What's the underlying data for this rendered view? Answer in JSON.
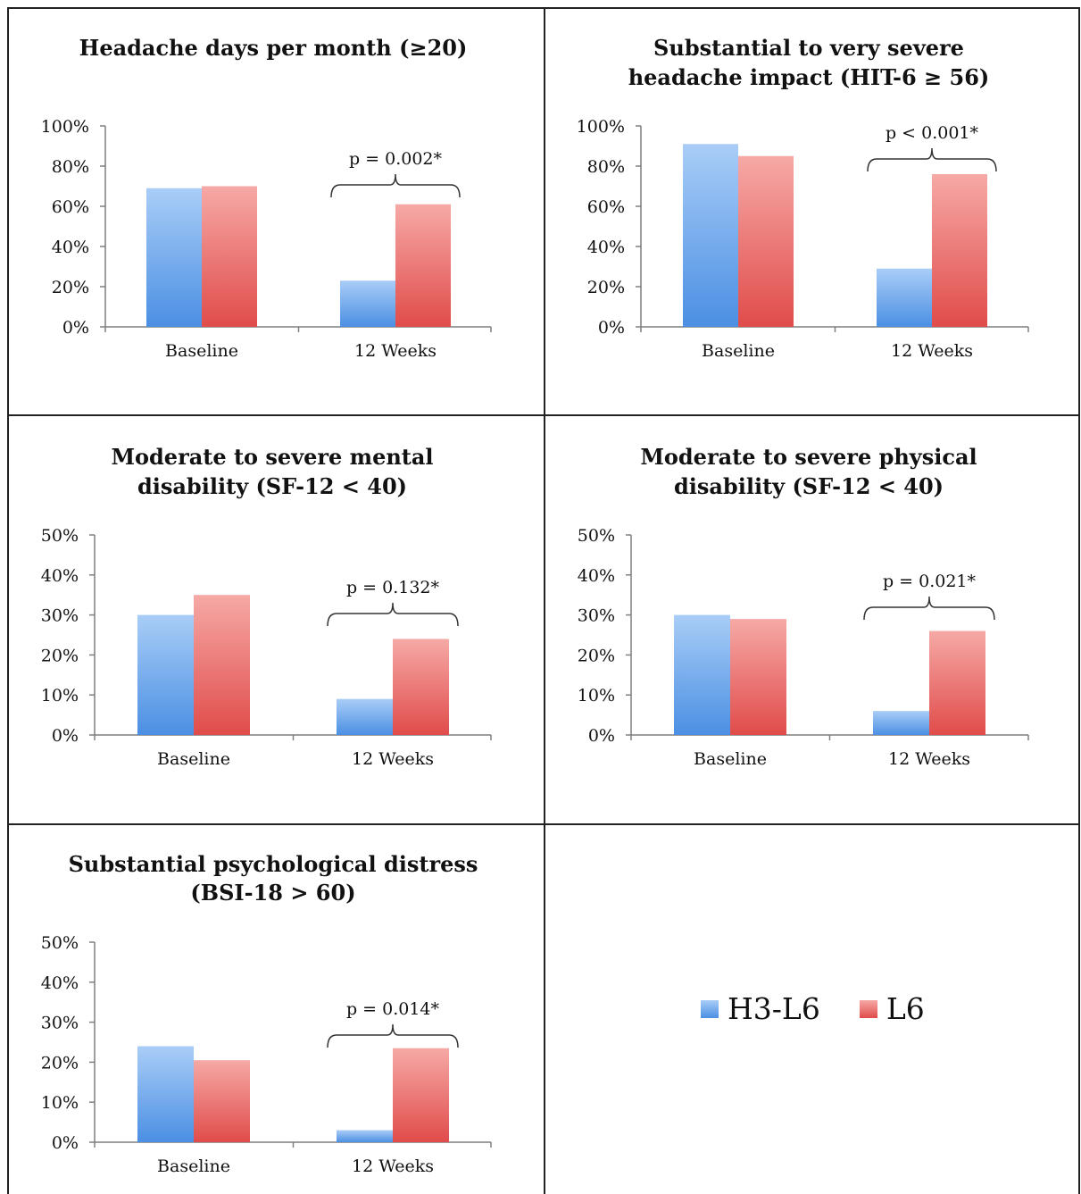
{
  "colors": {
    "h3l6_light": "#a9cdf7",
    "h3l6_dark": "#4b8fe3",
    "l6_light": "#f6a9a6",
    "l6_dark": "#e04c4a",
    "axis": "#7f7f7f",
    "text": "#111111"
  },
  "legend": {
    "items": [
      {
        "label": "H3-L6",
        "color": "#4b8fe3"
      },
      {
        "label": "L6",
        "color": "#e04c4a"
      }
    ]
  },
  "chart_data": [
    {
      "type": "bar",
      "title": [
        "Headache days per month (≥20)"
      ],
      "categories": [
        "Baseline",
        "12 Weeks"
      ],
      "series": [
        {
          "name": "H3-L6",
          "values": [
            69,
            23
          ]
        },
        {
          "name": "L6",
          "values": [
            70,
            61
          ]
        }
      ],
      "ylim": [
        0,
        100
      ],
      "yticks": [
        "0%",
        "20%",
        "40%",
        "60%",
        "80%",
        "100%"
      ],
      "annotation": "p = 0.002*"
    },
    {
      "type": "bar",
      "title": [
        "Substantial to very severe",
        "headache impact (HIT-6 ≥ 56)"
      ],
      "categories": [
        "Baseline",
        "12 Weeks"
      ],
      "series": [
        {
          "name": "H3-L6",
          "values": [
            91,
            29
          ]
        },
        {
          "name": "L6",
          "values": [
            85,
            76
          ]
        }
      ],
      "ylim": [
        0,
        100
      ],
      "yticks": [
        "0%",
        "20%",
        "40%",
        "60%",
        "80%",
        "100%"
      ],
      "annotation": "p < 0.001*"
    },
    {
      "type": "bar",
      "title": [
        "Moderate to severe mental",
        "disability (SF-12 < 40)"
      ],
      "categories": [
        "Baseline",
        "12 Weeks"
      ],
      "series": [
        {
          "name": "H3-L6",
          "values": [
            30,
            9
          ]
        },
        {
          "name": "L6",
          "values": [
            35,
            24
          ]
        }
      ],
      "ylim": [
        0,
        50
      ],
      "yticks": [
        "0%",
        "10%",
        "20%",
        "30%",
        "40%",
        "50%"
      ],
      "annotation": "p = 0.132*"
    },
    {
      "type": "bar",
      "title": [
        "Moderate to severe physical",
        "disability (SF-12 < 40)"
      ],
      "categories": [
        "Baseline",
        "12 Weeks"
      ],
      "series": [
        {
          "name": "H3-L6",
          "values": [
            30,
            6
          ]
        },
        {
          "name": "L6",
          "values": [
            29,
            26
          ]
        }
      ],
      "ylim": [
        0,
        50
      ],
      "yticks": [
        "0%",
        "10%",
        "20%",
        "30%",
        "40%",
        "50%"
      ],
      "annotation": "p = 0.021*"
    },
    {
      "type": "bar",
      "title": [
        "Substantial psychological distress",
        "(BSI-18 > 60)"
      ],
      "categories": [
        "Baseline",
        "12 Weeks"
      ],
      "series": [
        {
          "name": "H3-L6",
          "values": [
            24,
            3
          ]
        },
        {
          "name": "L6",
          "values": [
            20.5,
            23.5
          ]
        }
      ],
      "ylim": [
        0,
        50
      ],
      "yticks": [
        "0%",
        "10%",
        "20%",
        "30%",
        "40%",
        "50%"
      ],
      "annotation": "p = 0.014*"
    }
  ]
}
